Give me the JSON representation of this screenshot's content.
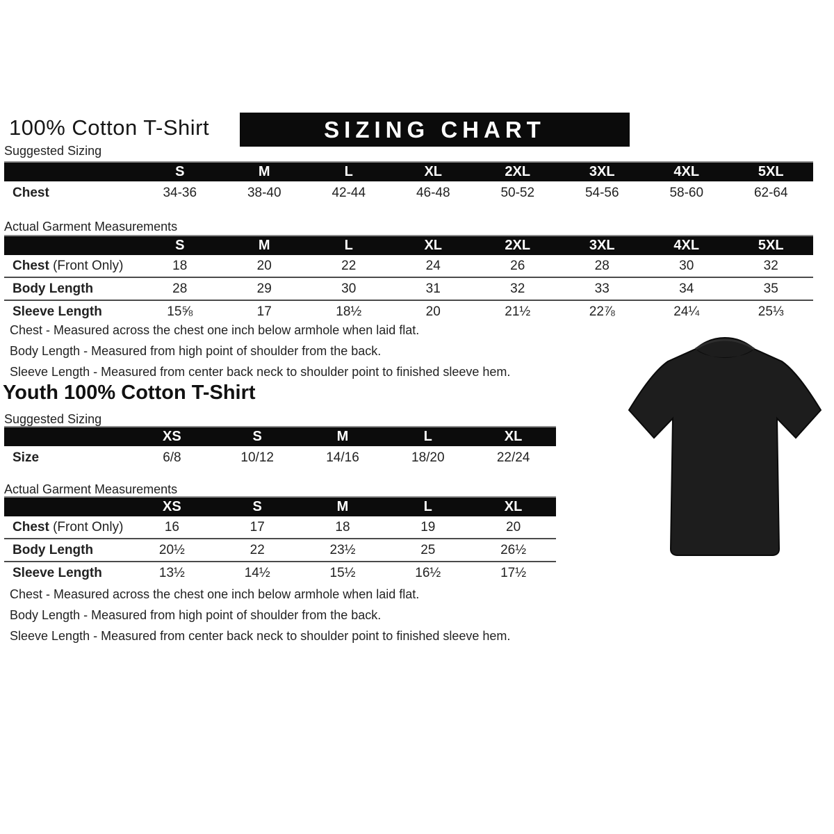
{
  "colors": {
    "bar_background": "#0c0c0c",
    "bar_text": "#ffffff",
    "tshirt_color": "#1d1d1d"
  },
  "header": {
    "title": "100% Cotton T-Shirt",
    "banner": "SIZING CHART"
  },
  "adult": {
    "suggested_label": "Suggested Sizing",
    "suggested_table": {
      "columns": [
        "S",
        "M",
        "L",
        "XL",
        "2XL",
        "3XL",
        "4XL",
        "5XL"
      ],
      "rows": [
        {
          "label": "Chest",
          "suffix": "",
          "values": [
            "34-36",
            "38-40",
            "42-44",
            "46-48",
            "50-52",
            "54-56",
            "58-60",
            "62-64"
          ]
        }
      ]
    },
    "actual_label": "Actual Garment Measurements",
    "actual_table": {
      "columns": [
        "S",
        "M",
        "L",
        "XL",
        "2XL",
        "3XL",
        "4XL",
        "5XL"
      ],
      "rows": [
        {
          "label": "Chest",
          "suffix": " (Front Only)",
          "values": [
            "18",
            "20",
            "22",
            "24",
            "26",
            "28",
            "30",
            "32"
          ]
        },
        {
          "label": "Body Length",
          "suffix": "",
          "values": [
            "28",
            "29",
            "30",
            "31",
            "32",
            "33",
            "34",
            "35"
          ]
        },
        {
          "label": "Sleeve Length",
          "suffix": "",
          "values": [
            "15⅝",
            "17",
            "18½",
            "20",
            "21½",
            "22⅞",
            "24¼",
            "25⅓"
          ]
        }
      ]
    },
    "notes": [
      "Chest - Measured across the chest one inch below armhole when laid flat.",
      "Body Length - Measured from high point of shoulder from the back.",
      "Sleeve Length - Measured from center back neck to shoulder point to finished sleeve hem."
    ]
  },
  "youth": {
    "title": "Youth 100% Cotton T-Shirt",
    "suggested_label": "Suggested Sizing",
    "suggested_table": {
      "columns": [
        "XS",
        "S",
        "M",
        "L",
        "XL"
      ],
      "rows": [
        {
          "label": "Size",
          "suffix": "",
          "values": [
            "6/8",
            "10/12",
            "14/16",
            "18/20",
            "22/24"
          ]
        }
      ]
    },
    "actual_label": "Actual Garment Measurements",
    "actual_table": {
      "columns": [
        "XS",
        "S",
        "M",
        "L",
        "XL"
      ],
      "rows": [
        {
          "label": "Chest",
          "suffix": " (Front Only)",
          "values": [
            "16",
            "17",
            "18",
            "19",
            "20"
          ]
        },
        {
          "label": "Body Length",
          "suffix": "",
          "values": [
            "20½",
            "22",
            "23½",
            "25",
            "26½"
          ]
        },
        {
          "label": "Sleeve Length",
          "suffix": "",
          "values": [
            "13½",
            "14½",
            "15½",
            "16½",
            "17½"
          ]
        }
      ]
    },
    "notes": [
      "Chest - Measured across the chest one inch below armhole when laid flat.",
      "Body Length - Measured from high point of shoulder from the back.",
      "Sleeve Length - Measured from center back neck to shoulder point to finished sleeve hem."
    ]
  },
  "tshirt_photo": {
    "name": "black-t-shirt-photo"
  }
}
